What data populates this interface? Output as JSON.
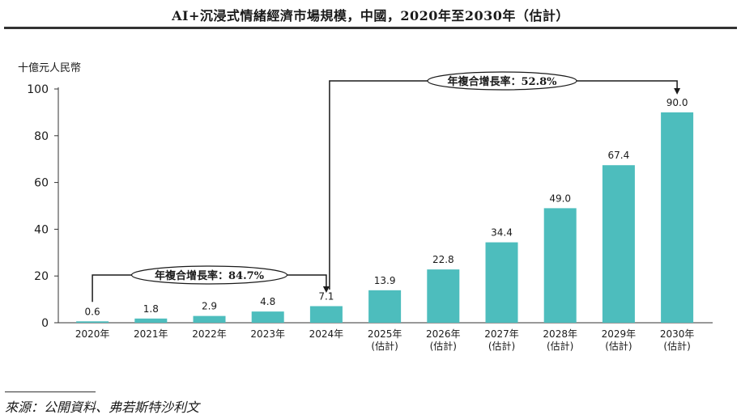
{
  "title": "AI+沉浸式情緒經濟市場規模，中國，2020年至2030年（估計）",
  "source": "來源：公開資料、弗若斯特沙利文",
  "chart_data": {
    "type": "bar",
    "ylabel": "十億元人民幣",
    "ylim": [
      0,
      100
    ],
    "yticks": [
      0,
      20,
      40,
      60,
      80,
      100
    ],
    "categories": [
      [
        "2020年"
      ],
      [
        "2021年"
      ],
      [
        "2022年"
      ],
      [
        "2023年"
      ],
      [
        "2024年"
      ],
      [
        "2025年",
        "(估計)"
      ],
      [
        "2026年",
        "(估計)"
      ],
      [
        "2027年",
        "(估計)"
      ],
      [
        "2028年",
        "(估計)"
      ],
      [
        "2029年",
        "(估計)"
      ],
      [
        "2030年",
        "(估計)"
      ]
    ],
    "values": [
      0.6,
      1.8,
      2.9,
      4.8,
      7.1,
      13.9,
      22.8,
      34.4,
      49.0,
      67.4,
      90.0
    ],
    "value_labels": [
      "0.6",
      "1.8",
      "2.9",
      "4.8",
      "7.1",
      "13.9",
      "22.8",
      "34.4",
      "49.0",
      "67.4",
      "90.0"
    ],
    "bar_color": "#4dbdbd",
    "annotations": [
      {
        "label": "年複合增長率：84.7%",
        "from_index": 0,
        "to_index": 4
      },
      {
        "label": "年複合增長率：52.8%",
        "from_index": 4,
        "to_index": 10
      }
    ]
  }
}
